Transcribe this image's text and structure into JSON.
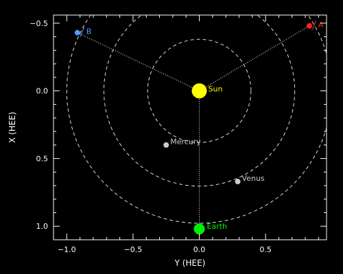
{
  "chart_data": {
    "type": "scatter",
    "title": "",
    "xlabel": "Y (HEE)",
    "ylabel": "X (HEE)",
    "xlim": [
      -1.1,
      0.96
    ],
    "ylim": [
      1.1,
      -0.56
    ],
    "y_inverted": true,
    "x_ticks": [
      -1.0,
      -0.5,
      0.0,
      0.5
    ],
    "x_tick_labels": [
      "−1.0",
      "−0.5",
      "0.0",
      "0.5"
    ],
    "y_ticks": [
      -0.5,
      0.0,
      0.5,
      1.0
    ],
    "y_tick_labels": [
      "−0.5",
      "0.0",
      "0.5",
      "1.0"
    ],
    "background": "#000000",
    "foreground": "#ffffff",
    "orbits": [
      0.39,
      0.72,
      1.0
    ],
    "points": [
      {
        "name": "Sun",
        "y_hee": 0.0,
        "x_hee": 0.0,
        "color": "#ffff00",
        "label_color": "#ffff00"
      },
      {
        "name": "Mercury",
        "y_hee": -0.25,
        "x_hee": 0.4,
        "color": "#cccccc",
        "label_color": "#cccccc"
      },
      {
        "name": "Venus",
        "y_hee": 0.29,
        "x_hee": 0.67,
        "color": "#cccccc",
        "label_color": "#cccccc"
      },
      {
        "name": "Earth",
        "y_hee": 0.0,
        "x_hee": 1.02,
        "color": "#00ee00",
        "label_color": "#00ee00"
      },
      {
        "name": "A",
        "y_hee": 0.83,
        "x_hee": -0.48,
        "color": "#ff2222",
        "label_color": "#ff2222"
      },
      {
        "name": "B",
        "y_hee": -0.92,
        "x_hee": -0.43,
        "color": "#5599ff",
        "label_color": "#5599ff"
      }
    ],
    "lines_from_sun": [
      "Earth",
      "A",
      "B"
    ],
    "grid": false,
    "legend": "none"
  }
}
